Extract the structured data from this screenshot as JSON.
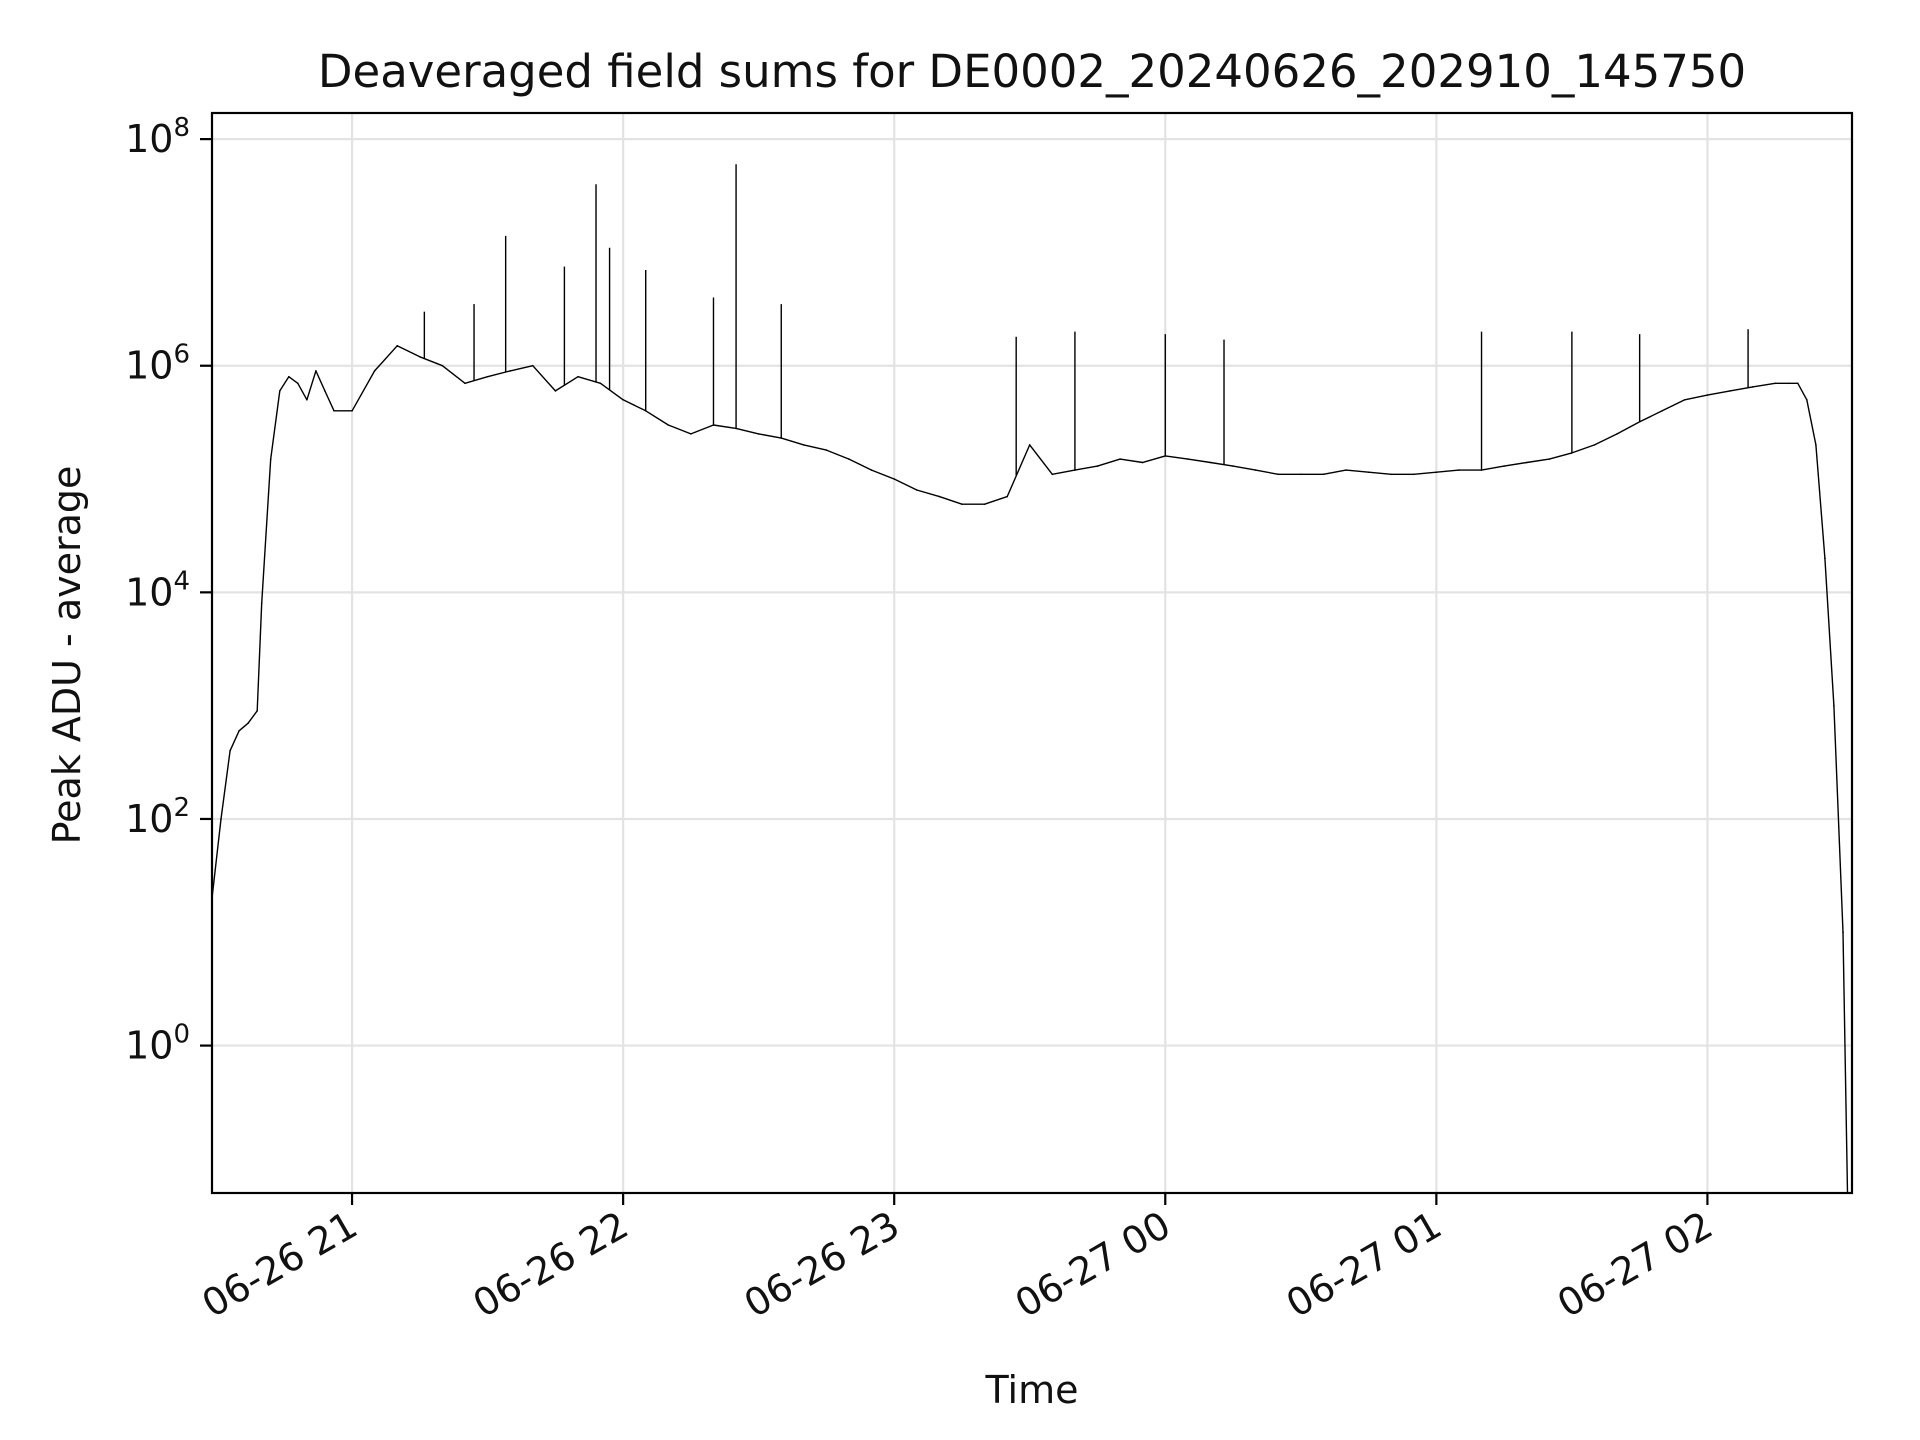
{
  "chart_data": {
    "type": "line",
    "title": "Deaveraged field sums for DE0002_20240626_202910_145750",
    "xlabel": "Time",
    "ylabel": "Peak ADU - average",
    "yscale": "log",
    "grid": true,
    "legend": "none",
    "line_color": "#000000",
    "grid_color": "#e3e3e3",
    "xlim": [
      "06-26 20:29",
      "06-27 02:32"
    ],
    "ylim": [
      0.05,
      170000000
    ],
    "x_ticks": [
      {
        "value": "06-26 21:00",
        "label": "06-26 21"
      },
      {
        "value": "06-26 22:00",
        "label": "06-26 22"
      },
      {
        "value": "06-26 23:00",
        "label": "06-26 23"
      },
      {
        "value": "06-27 00:00",
        "label": "06-27 00"
      },
      {
        "value": "06-27 01:00",
        "label": "06-27 01"
      },
      {
        "value": "06-27 02:00",
        "label": "06-27 02"
      }
    ],
    "y_ticks": [
      {
        "value": 1,
        "base": "10",
        "exp": "0"
      },
      {
        "value": 100,
        "base": "10",
        "exp": "2"
      },
      {
        "value": 10000,
        "base": "10",
        "exp": "4"
      },
      {
        "value": 1000000,
        "base": "10",
        "exp": "6"
      },
      {
        "value": 100000000,
        "base": "10",
        "exp": "8"
      }
    ],
    "series": [
      {
        "x": [
          "06-26 20:29",
          "06-26 20:31",
          "06-26 20:33",
          "06-26 20:35",
          "06-26 20:37",
          "06-26 20:39",
          "06-26 20:40",
          "06-26 20:42",
          "06-26 20:44",
          "06-26 20:46",
          "06-26 20:48",
          "06-26 20:50",
          "06-26 20:52",
          "06-26 20:54",
          "06-26 20:56",
          "06-26 21:00",
          "06-26 21:05",
          "06-26 21:10",
          "06-26 21:15",
          "06-26 21:20",
          "06-26 21:25",
          "06-26 21:30",
          "06-26 21:35",
          "06-26 21:40",
          "06-26 21:45",
          "06-26 21:50",
          "06-26 21:55",
          "06-26 22:00",
          "06-26 22:05",
          "06-26 22:10",
          "06-26 22:15",
          "06-26 22:20",
          "06-26 22:25",
          "06-26 22:30",
          "06-26 22:35",
          "06-26 22:40",
          "06-26 22:45",
          "06-26 22:50",
          "06-26 22:55",
          "06-26 23:00",
          "06-26 23:05",
          "06-26 23:10",
          "06-26 23:15",
          "06-26 23:20",
          "06-26 23:25",
          "06-26 23:30",
          "06-26 23:35",
          "06-26 23:40",
          "06-26 23:45",
          "06-26 23:50",
          "06-26 23:55",
          "06-27 00:00",
          "06-27 00:05",
          "06-27 00:10",
          "06-27 00:15",
          "06-27 00:20",
          "06-27 00:25",
          "06-27 00:30",
          "06-27 00:35",
          "06-27 00:40",
          "06-27 00:45",
          "06-27 00:50",
          "06-27 00:55",
          "06-27 01:00",
          "06-27 01:05",
          "06-27 01:10",
          "06-27 01:15",
          "06-27 01:20",
          "06-27 01:25",
          "06-27 01:30",
          "06-27 01:35",
          "06-27 01:40",
          "06-27 01:45",
          "06-27 01:50",
          "06-27 01:55",
          "06-27 02:00",
          "06-27 02:05",
          "06-27 02:10",
          "06-27 02:15",
          "06-27 02:18",
          "06-27 02:20",
          "06-27 02:22",
          "06-27 02:24",
          "06-27 02:26",
          "06-27 02:28",
          "06-27 02:30",
          "06-27 02:31"
        ],
        "values": [
          20,
          100,
          400,
          600,
          700,
          900,
          8000,
          150000,
          600000,
          800000,
          700000,
          500000,
          900000,
          600000,
          400000,
          400000,
          900000,
          1500000,
          1200000,
          1000000,
          700000,
          800000,
          900000,
          1000000,
          600000,
          800000,
          700000,
          500000,
          400000,
          300000,
          250000,
          300000,
          280000,
          250000,
          230000,
          200000,
          180000,
          150000,
          120000,
          100000,
          80000,
          70000,
          60000,
          60000,
          70000,
          200000,
          110000,
          120000,
          130000,
          150000,
          140000,
          160000,
          150000,
          140000,
          130000,
          120000,
          110000,
          110000,
          110000,
          120000,
          115000,
          110000,
          110000,
          115000,
          120000,
          120000,
          130000,
          140000,
          150000,
          170000,
          200000,
          250000,
          320000,
          400000,
          500000,
          550000,
          600000,
          650000,
          700000,
          700000,
          700000,
          500000,
          200000,
          20000,
          1000,
          10,
          0.05
        ]
      }
    ],
    "spikes": [
      {
        "x": "06-26 21:34",
        "value": 14000000
      },
      {
        "x": "06-26 21:54",
        "value": 40000000
      },
      {
        "x": "06-26 21:57",
        "value": 11000000
      },
      {
        "x": "06-26 22:05",
        "value": 7000000
      },
      {
        "x": "06-26 22:25",
        "value": 60000000
      },
      {
        "x": "06-26 22:20",
        "value": 4000000
      },
      {
        "x": "06-26 22:35",
        "value": 3500000
      },
      {
        "x": "06-26 21:47",
        "value": 7500000
      },
      {
        "x": "06-26 21:16",
        "value": 3000000
      },
      {
        "x": "06-26 21:27",
        "value": 3500000
      },
      {
        "x": "06-26 23:27",
        "value": 1800000
      },
      {
        "x": "06-26 23:40",
        "value": 2000000
      },
      {
        "x": "06-27 00:00",
        "value": 1900000
      },
      {
        "x": "06-27 00:13",
        "value": 1700000
      },
      {
        "x": "06-27 01:10",
        "value": 2000000
      },
      {
        "x": "06-27 01:30",
        "value": 2000000
      },
      {
        "x": "06-27 01:45",
        "value": 1900000
      },
      {
        "x": "06-27 02:09",
        "value": 2100000
      }
    ]
  }
}
